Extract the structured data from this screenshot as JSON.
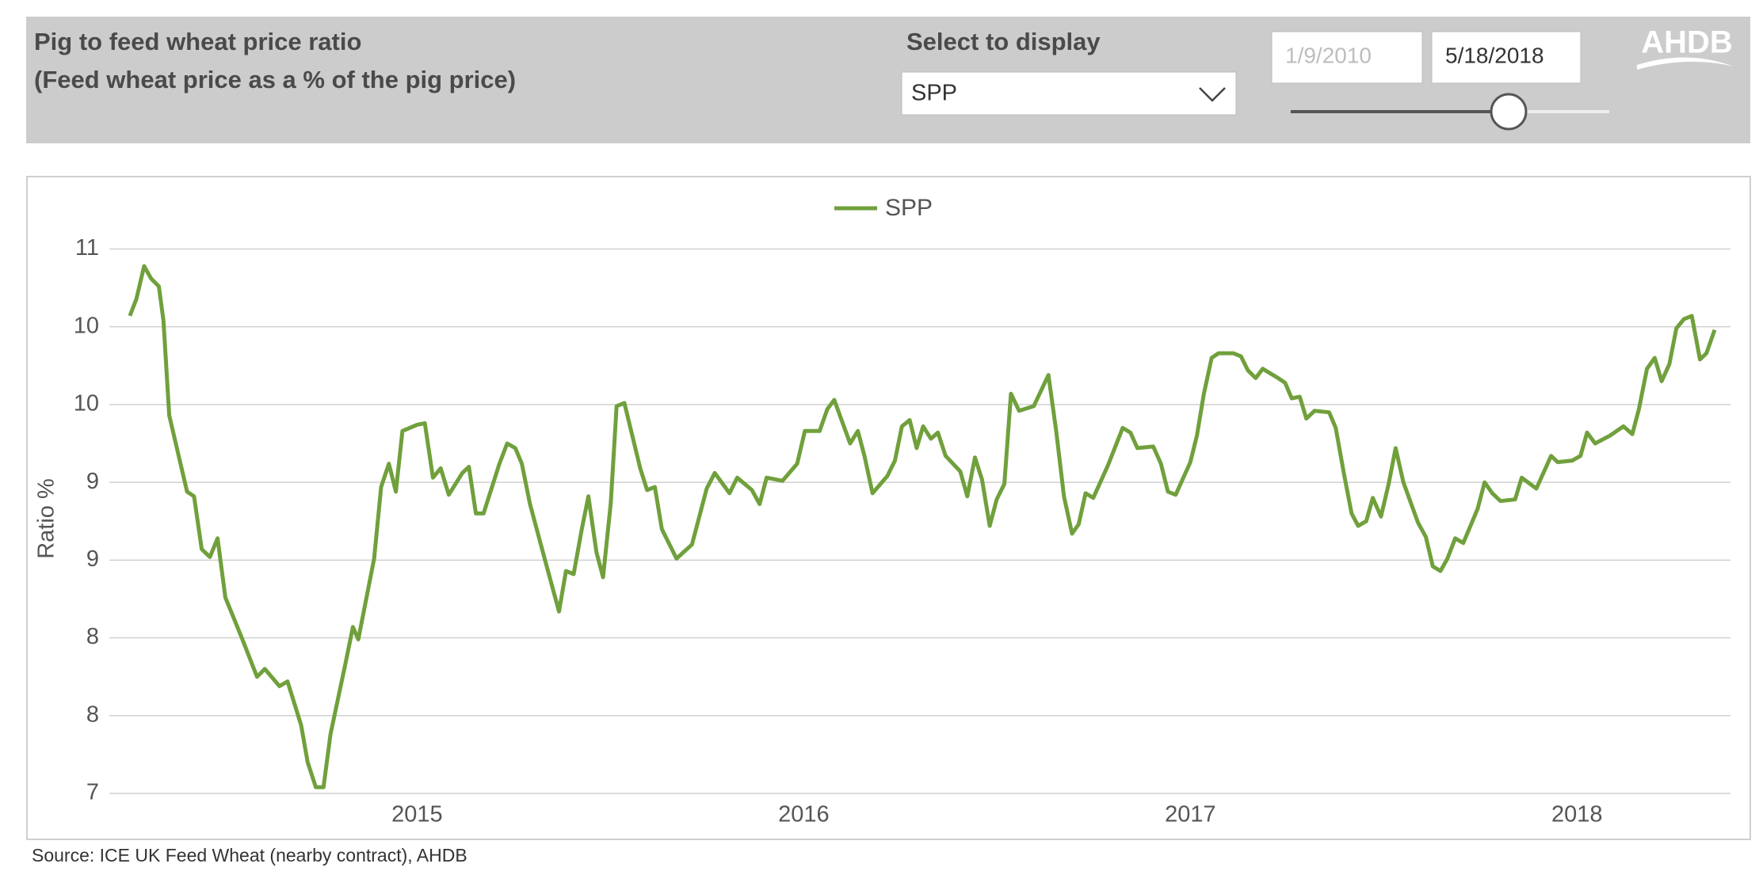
{
  "header": {
    "title_line1": "Pig to feed wheat price ratio",
    "title_line2": "(Feed wheat price as a % of the pig price)",
    "select_label": "Select to display",
    "dropdown_value": "SPP",
    "date_start": "1/9/2010",
    "date_end": "5/18/2018",
    "logo": "AHDB"
  },
  "chart_data": {
    "type": "line",
    "ylabel": "Ratio %",
    "x": [
      2014.257,
      2014.274,
      2014.294,
      2014.312,
      2014.332,
      2014.344,
      2014.359,
      2014.405,
      2014.423,
      2014.443,
      2014.464,
      2014.484,
      2014.504,
      2014.545,
      2014.586,
      2014.606,
      2014.644,
      2014.665,
      2014.7,
      2014.717,
      2014.738,
      2014.758,
      2014.776,
      2014.816,
      2014.834,
      2014.848,
      2014.889,
      2014.907,
      2014.927,
      2014.945,
      2014.962,
      2015.0,
      2015.02,
      2015.041,
      2015.061,
      2015.082,
      2015.117,
      2015.134,
      2015.152,
      2015.172,
      2015.213,
      2015.233,
      2015.254,
      2015.271,
      2015.292,
      2015.332,
      2015.367,
      2015.385,
      2015.405,
      2015.426,
      2015.443,
      2015.464,
      2015.481,
      2015.501,
      2015.516,
      2015.536,
      2015.577,
      2015.595,
      2015.615,
      2015.633,
      2015.671,
      2015.711,
      2015.749,
      2015.77,
      2015.808,
      2015.828,
      2015.866,
      2015.886,
      2015.904,
      2015.945,
      2015.983,
      2016.003,
      2016.041,
      2016.061,
      2016.079,
      2016.12,
      2016.14,
      2016.157,
      2016.178,
      2016.216,
      2016.236,
      2016.254,
      2016.274,
      2016.292,
      2016.309,
      2016.329,
      2016.347,
      2016.367,
      2016.405,
      2016.423,
      2016.443,
      2016.461,
      2016.481,
      2016.499,
      2016.519,
      2016.536,
      2016.557,
      2016.595,
      2016.633,
      2016.653,
      2016.673,
      2016.694,
      2016.711,
      2016.729,
      2016.749,
      2016.787,
      2016.825,
      2016.845,
      2016.863,
      2016.904,
      2016.924,
      2016.942,
      2016.962,
      2017.0,
      2017.017,
      2017.035,
      2017.055,
      2017.073,
      2017.111,
      2017.131,
      2017.149,
      2017.169,
      2017.187,
      2017.227,
      2017.245,
      2017.262,
      2017.283,
      2017.3,
      2017.321,
      2017.359,
      2017.376,
      2017.397,
      2017.417,
      2017.434,
      2017.455,
      2017.472,
      2017.493,
      2017.513,
      2017.531,
      2017.551,
      2017.589,
      2017.609,
      2017.627,
      2017.647,
      2017.665,
      2017.685,
      2017.706,
      2017.743,
      2017.761,
      2017.781,
      2017.802,
      2017.84,
      2017.857,
      2017.895,
      2017.933,
      2017.95,
      2017.988,
      2018.009,
      2018.026,
      2018.047,
      2018.085,
      2018.12,
      2018.143,
      2018.16,
      2018.181,
      2018.201,
      2018.219,
      2018.239,
      2018.257,
      2018.277,
      2018.297,
      2018.318,
      2018.335,
      2018.356
    ],
    "series": [
      {
        "name": "SPP",
        "color": "#70a03c",
        "values": [
          10.07,
          10.18,
          10.39,
          10.31,
          10.26,
          10.04,
          9.43,
          8.94,
          8.91,
          8.57,
          8.52,
          8.64,
          8.26,
          8.01,
          7.75,
          7.8,
          7.69,
          7.72,
          7.44,
          7.2,
          7.04,
          7.04,
          7.38,
          7.85,
          8.07,
          7.99,
          8.51,
          8.97,
          9.12,
          8.94,
          9.33,
          9.37,
          9.38,
          9.03,
          9.09,
          8.92,
          9.06,
          9.1,
          8.8,
          8.8,
          9.12,
          9.25,
          9.22,
          9.12,
          8.86,
          8.49,
          8.17,
          8.43,
          8.41,
          8.7,
          8.91,
          8.55,
          8.39,
          8.87,
          9.49,
          9.51,
          9.09,
          8.95,
          8.97,
          8.7,
          8.51,
          8.6,
          8.96,
          9.06,
          8.93,
          9.03,
          8.95,
          8.86,
          9.03,
          9.01,
          9.12,
          9.33,
          9.33,
          9.47,
          9.53,
          9.25,
          9.33,
          9.17,
          8.93,
          9.04,
          9.14,
          9.36,
          9.4,
          9.22,
          9.36,
          9.28,
          9.32,
          9.17,
          9.07,
          8.91,
          9.16,
          9.02,
          8.72,
          8.89,
          8.99,
          9.57,
          9.46,
          9.49,
          9.69,
          9.33,
          8.91,
          8.67,
          8.73,
          8.93,
          8.9,
          9.11,
          9.35,
          9.32,
          9.22,
          9.23,
          9.12,
          8.94,
          8.92,
          9.13,
          9.3,
          9.57,
          9.8,
          9.83,
          9.83,
          9.81,
          9.72,
          9.67,
          9.73,
          9.67,
          9.64,
          9.54,
          9.55,
          9.41,
          9.46,
          9.45,
          9.35,
          9.06,
          8.8,
          8.72,
          8.75,
          8.9,
          8.78,
          8.99,
          9.22,
          9.0,
          8.74,
          8.65,
          8.46,
          8.43,
          8.51,
          8.64,
          8.61,
          8.83,
          9.0,
          8.93,
          8.88,
          8.89,
          9.03,
          8.96,
          9.17,
          9.13,
          9.14,
          9.17,
          9.32,
          9.25,
          9.3,
          9.36,
          9.31,
          9.47,
          9.73,
          9.8,
          9.65,
          9.76,
          9.99,
          10.05,
          10.07,
          9.79,
          9.83,
          9.98
        ]
      }
    ],
    "xlim": [
      2014.204,
      2018.397
    ],
    "xticks": [
      2015,
      2016,
      2017,
      2018
    ],
    "ylim": [
      7,
      10.65
    ],
    "yticks": [
      7,
      {
        "value": 7.5,
        "label": "8"
      },
      8,
      {
        "value": 8.5,
        "label": "9"
      },
      9,
      {
        "value": 9.5,
        "label": "10"
      },
      10,
      {
        "value": 10.5,
        "label": "11"
      }
    ],
    "grid": true,
    "legend": "top"
  },
  "source": "Source:  ICE UK Feed Wheat (nearby contract), AHDB"
}
